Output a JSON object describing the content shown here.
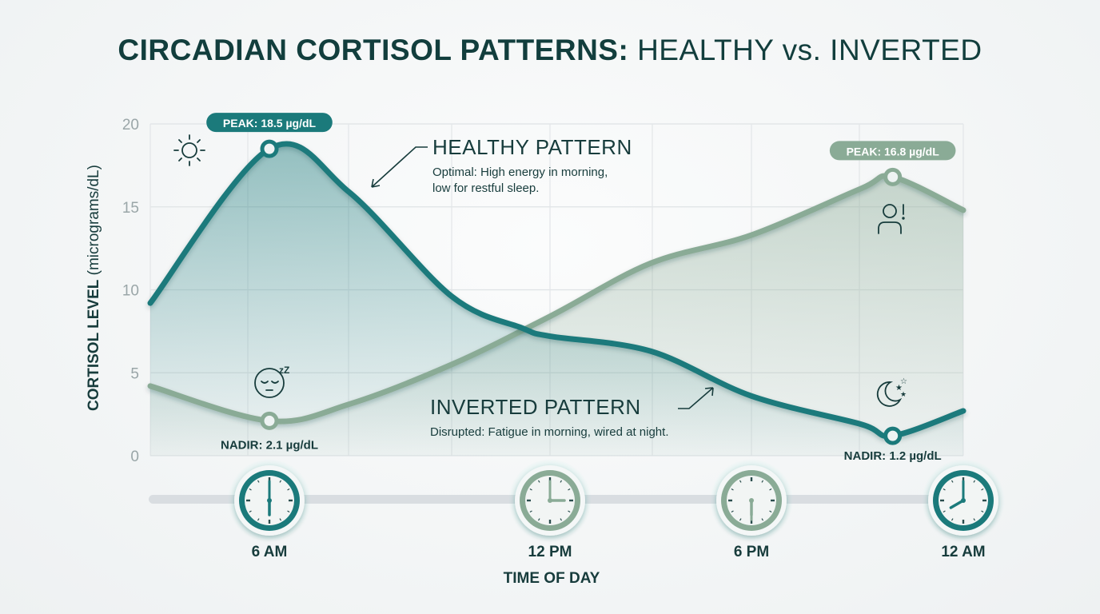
{
  "title": {
    "bold": "CIRCADIAN CORTISOL PATTERNS:",
    "regular": "HEALTHY vs. INVERTED"
  },
  "chart_data": {
    "type": "line",
    "title": "CIRCADIAN CORTISOL PATTERNS: HEALTHY vs. INVERTED",
    "xlabel": "TIME OF DAY",
    "ylabel_bold": "CORTISOL LEVEL",
    "ylabel_unit": "(micrograms/dL)",
    "ylim": [
      0,
      20
    ],
    "yticks": [
      0,
      5,
      10,
      15,
      20
    ],
    "x_unit": "hour of day",
    "xticks": [
      {
        "hour": 6,
        "label": "6 AM"
      },
      {
        "hour": 12,
        "label": "12 PM"
      },
      {
        "hour": 18,
        "label": "6 PM"
      },
      {
        "hour": 24,
        "label": "12 AM"
      }
    ],
    "grid": true,
    "colors": {
      "healthy": "#1b7a7b",
      "inverted": "#8aab96"
    },
    "series": [
      {
        "name": "HEALTHY PATTERN",
        "x": [
          3.4,
          6,
          7.7,
          9.9,
          11.4,
          12,
          15,
          18,
          21.1,
          22,
          24
        ],
        "y": [
          9.2,
          18.5,
          15.9,
          9.6,
          7.7,
          7.2,
          6.3,
          3.6,
          1.9,
          1.2,
          2.7
        ]
      },
      {
        "name": "INVERTED PATTERN",
        "x": [
          3.4,
          6,
          7.7,
          9.9,
          12,
          15,
          18,
          21.1,
          22,
          24
        ],
        "y": [
          4.2,
          2.1,
          3.1,
          5.5,
          8.4,
          11.6,
          13.3,
          16.1,
          16.8,
          14.8
        ]
      }
    ],
    "annotations": {
      "healthy_peak": {
        "hour": 6,
        "value": 18.5,
        "label": "PEAK: 18.5 µg/dL"
      },
      "healthy_nadir": {
        "hour": 22,
        "value": 1.2,
        "label": "NADIR: 1.2 µg/dL"
      },
      "inverted_peak": {
        "hour": 22,
        "value": 16.8,
        "label": "PEAK: 16.8 µg/dL"
      },
      "inverted_nadir": {
        "hour": 6,
        "value": 2.1,
        "label": "NADIR: 2.1 µg/dL"
      }
    }
  },
  "legend": {
    "healthy": {
      "title": "HEALTHY PATTERN",
      "desc1": "Optimal: High energy in morning,",
      "desc2": "low for restful sleep."
    },
    "inverted": {
      "title": "INVERTED PATTERN",
      "desc": "Disrupted: Fatigue in morning, wired at night."
    }
  },
  "icons": [
    "sun-icon",
    "sleeping-face-icon",
    "alert-person-icon",
    "moon-stars-icon",
    "clock-icon"
  ]
}
